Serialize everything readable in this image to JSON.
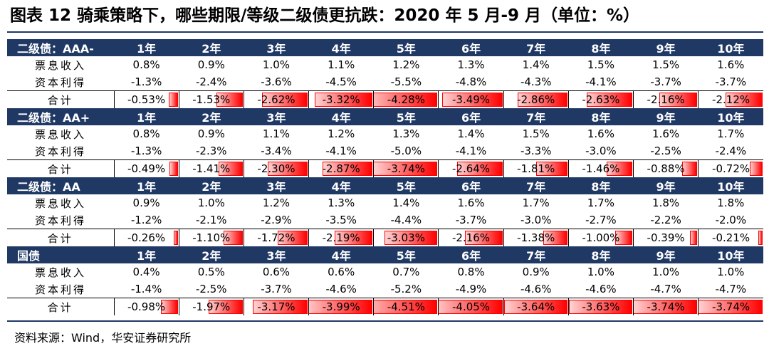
{
  "title": "图表 12 骑乘策略下，哪些期限/等级二级债更抗跌：2020 年 5 月-9 月（单位：%）",
  "row_labels": {
    "coupon": "票息收入",
    "capital": "资本利得",
    "total": "合计"
  },
  "sections": [
    {
      "name": "二级债：AAA-",
      "tenors": [
        "1年",
        "2年",
        "3年",
        "4年",
        "5年",
        "6年",
        "7年",
        "8年",
        "9年",
        "10年"
      ],
      "coupon": [
        "0.8%",
        "0.9%",
        "1.0%",
        "1.1%",
        "1.2%",
        "1.3%",
        "1.4%",
        "1.5%",
        "1.5%",
        "1.6%"
      ],
      "capital": [
        "-1.3%",
        "-2.4%",
        "-3.6%",
        "-4.5%",
        "-5.5%",
        "-4.8%",
        "-4.3%",
        "-4.1%",
        "-3.7%",
        "-3.7%"
      ],
      "total": [
        "-0.53%",
        "-1.53%",
        "-2.62%",
        "-3.32%",
        "-4.28%",
        "-3.49%",
        "-2.86%",
        "-2.63%",
        "-2.16%",
        "-2.12%"
      ],
      "total_values": [
        -0.53,
        -1.53,
        -2.62,
        -3.32,
        -4.28,
        -3.49,
        -2.86,
        -2.63,
        -2.16,
        -2.12
      ]
    },
    {
      "name": "二级债：AA+",
      "tenors": [
        "1年",
        "2年",
        "3年",
        "4年",
        "5年",
        "6年",
        "7年",
        "8年",
        "9年",
        "10年"
      ],
      "coupon": [
        "0.8%",
        "0.9%",
        "1.1%",
        "1.2%",
        "1.3%",
        "1.4%",
        "1.5%",
        "1.6%",
        "1.6%",
        "1.7%"
      ],
      "capital": [
        "-1.3%",
        "-2.3%",
        "-3.4%",
        "-4.1%",
        "-5.0%",
        "-4.1%",
        "-3.3%",
        "-3.0%",
        "-2.5%",
        "-2.4%"
      ],
      "total": [
        "-0.49%",
        "-1.41%",
        "-2.30%",
        "-2.87%",
        "-3.74%",
        "-2.64%",
        "-1.81%",
        "-1.46%",
        "-0.88%",
        "-0.72%"
      ],
      "total_values": [
        -0.49,
        -1.41,
        -2.3,
        -2.87,
        -3.74,
        -2.64,
        -1.81,
        -1.46,
        -0.88,
        -0.72
      ]
    },
    {
      "name": "二级债：AA",
      "tenors": [
        "1年",
        "2年",
        "3年",
        "4年",
        "5年",
        "6年",
        "7年",
        "8年",
        "9年",
        "10年"
      ],
      "coupon": [
        "0.9%",
        "1.0%",
        "1.2%",
        "1.3%",
        "1.4%",
        "1.6%",
        "1.7%",
        "1.7%",
        "1.8%",
        "1.8%"
      ],
      "capital": [
        "-1.2%",
        "-2.1%",
        "-2.9%",
        "-3.5%",
        "-4.4%",
        "-3.7%",
        "-3.0%",
        "-2.7%",
        "-2.2%",
        "-2.0%"
      ],
      "total": [
        "-0.26%",
        "-1.10%",
        "-1.72%",
        "-2.19%",
        "-3.03%",
        "-2.16%",
        "-1.38%",
        "-1.00%",
        "-0.39%",
        "-0.21%"
      ],
      "total_values": [
        -0.26,
        -1.1,
        -1.72,
        -2.19,
        -3.03,
        -2.16,
        -1.38,
        -1.0,
        -0.39,
        -0.21
      ]
    },
    {
      "name": "国债",
      "tenors": [
        "1年",
        "2年",
        "3年",
        "4年",
        "5年",
        "6年",
        "7年",
        "8年",
        "9年",
        "10年"
      ],
      "coupon": [
        "0.4%",
        "0.5%",
        "0.6%",
        "0.6%",
        "0.7%",
        "0.8%",
        "0.9%",
        "1.0%",
        "1.0%",
        "1.0%"
      ],
      "capital": [
        "-1.4%",
        "-2.5%",
        "-3.7%",
        "-4.6%",
        "-5.2%",
        "-4.9%",
        "-4.6%",
        "-4.6%",
        "-4.7%",
        "-4.7%"
      ],
      "total": [
        "-0.98%",
        "-1.97%",
        "-3.17%",
        "-3.99%",
        "-4.51%",
        "-4.05%",
        "-3.64%",
        "-3.63%",
        "-3.74%",
        "-3.74%"
      ],
      "total_values": [
        -0.98,
        -1.97,
        -3.17,
        -3.99,
        -4.51,
        -4.05,
        -3.64,
        -3.63,
        -3.74,
        -3.74
      ]
    }
  ],
  "data_bar": {
    "max_abs": 4.51,
    "color": "#ff0000"
  },
  "source": "资料来源：Wind，华安证券研究所",
  "colors": {
    "header_bg": "#1f3864",
    "header_text": "#ffffff",
    "bar": "#ff0000"
  }
}
